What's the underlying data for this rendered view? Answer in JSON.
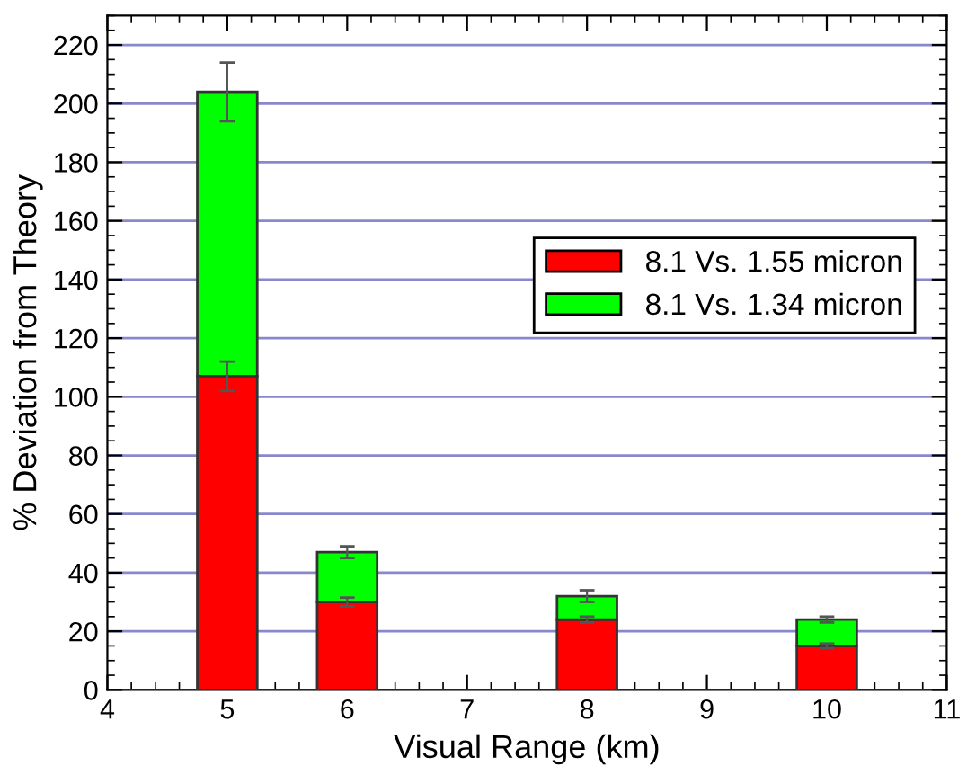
{
  "chart_data": {
    "type": "bar",
    "stacked": true,
    "xlabel": "Visual Range (km)",
    "ylabel": "% Deviation from Theory",
    "x": [
      5,
      6,
      8,
      10
    ],
    "series": [
      {
        "name": "8.1 Vs. 1.55 micron",
        "color": "#ff0000",
        "values": [
          107,
          30,
          24,
          15
        ],
        "errors": [
          5,
          1.5,
          1,
          0.8
        ]
      },
      {
        "name": "8.1 Vs. 1.34 micron",
        "color": "#00ff00",
        "values": [
          97,
          17,
          8,
          9
        ],
        "errors": [
          10,
          2,
          2,
          1
        ]
      }
    ],
    "xlim": [
      4,
      11
    ],
    "xticks": [
      4,
      5,
      6,
      7,
      8,
      9,
      10,
      11
    ],
    "ylim": [
      0,
      230
    ],
    "yticks": [
      0,
      20,
      40,
      60,
      80,
      100,
      120,
      140,
      160,
      180,
      200,
      220
    ],
    "grid": "y",
    "legend": "right"
  }
}
